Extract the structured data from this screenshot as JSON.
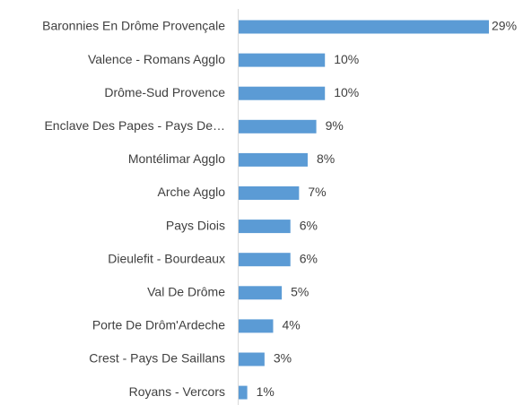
{
  "chart_data": {
    "type": "barh",
    "categories": [
      "Baronnies En Drôme Provençale",
      "Valence - Romans Agglo",
      "Drôme-Sud Provence",
      "Enclave Des Papes - Pays De…",
      "Montélimar Agglo",
      "Arche Agglo",
      "Pays Diois",
      "Dieulefit - Bourdeaux",
      "Val De Drôme",
      "Porte De Drôm'Ardeche",
      "Crest - Pays De Saillans",
      "Royans - Vercors"
    ],
    "values": [
      29,
      10,
      10,
      9,
      8,
      7,
      6,
      6,
      5,
      4,
      3,
      1
    ],
    "value_labels": [
      "29%",
      "10%",
      "10%",
      "9%",
      "8%",
      "7%",
      "6%",
      "6%",
      "5%",
      "4%",
      "3%",
      "1%"
    ],
    "color": "#5b9bd5"
  }
}
